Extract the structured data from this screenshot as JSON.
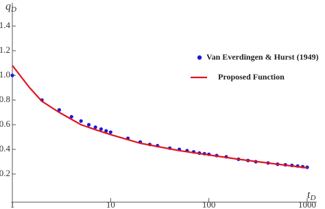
{
  "chart_data": {
    "type": "scatter-line",
    "x_label": "t",
    "x_label_subscript": "D",
    "y_label": "q",
    "y_label_subscript": "D",
    "xlim": [
      1,
      1000
    ],
    "ylim": [
      0,
      1.5
    ],
    "log_x": true,
    "xticks": [
      1,
      10,
      100,
      1000
    ],
    "yticks": [
      0.2,
      0.4,
      0.6,
      0.8,
      {
        "value": 1,
        "label": "1.0"
      },
      1.2,
      1.4
    ],
    "series": [
      {
        "name": "Van Everdingen & Hurst (1949)",
        "kind": "points",
        "color": "#1a1adc",
        "x": [
          1,
          2,
          3,
          4,
          5,
          6,
          7,
          8,
          9,
          10,
          15,
          20,
          25,
          30,
          40,
          50,
          60,
          70,
          80,
          90,
          100,
          120,
          150,
          200,
          250,
          300,
          400,
          500,
          600,
          700,
          800,
          900,
          1000
        ],
        "values": [
          1.0,
          0.8,
          0.72,
          0.665,
          0.63,
          0.6,
          0.58,
          0.565,
          0.55,
          0.54,
          0.49,
          0.46,
          0.44,
          0.43,
          0.41,
          0.4,
          0.39,
          0.38,
          0.37,
          0.365,
          0.36,
          0.35,
          0.34,
          0.32,
          0.31,
          0.3,
          0.29,
          0.28,
          0.275,
          0.27,
          0.265,
          0.26,
          0.255
        ]
      },
      {
        "name": "Proposed Function",
        "kind": "line",
        "color": "#e0141e",
        "x": [
          1,
          1.5,
          2,
          3,
          5,
          7,
          10,
          20,
          50,
          100,
          200,
          500,
          1000
        ],
        "values": [
          1.08,
          0.9,
          0.79,
          0.7,
          0.6,
          0.56,
          0.52,
          0.45,
          0.39,
          0.355,
          0.32,
          0.28,
          0.25
        ]
      }
    ]
  }
}
